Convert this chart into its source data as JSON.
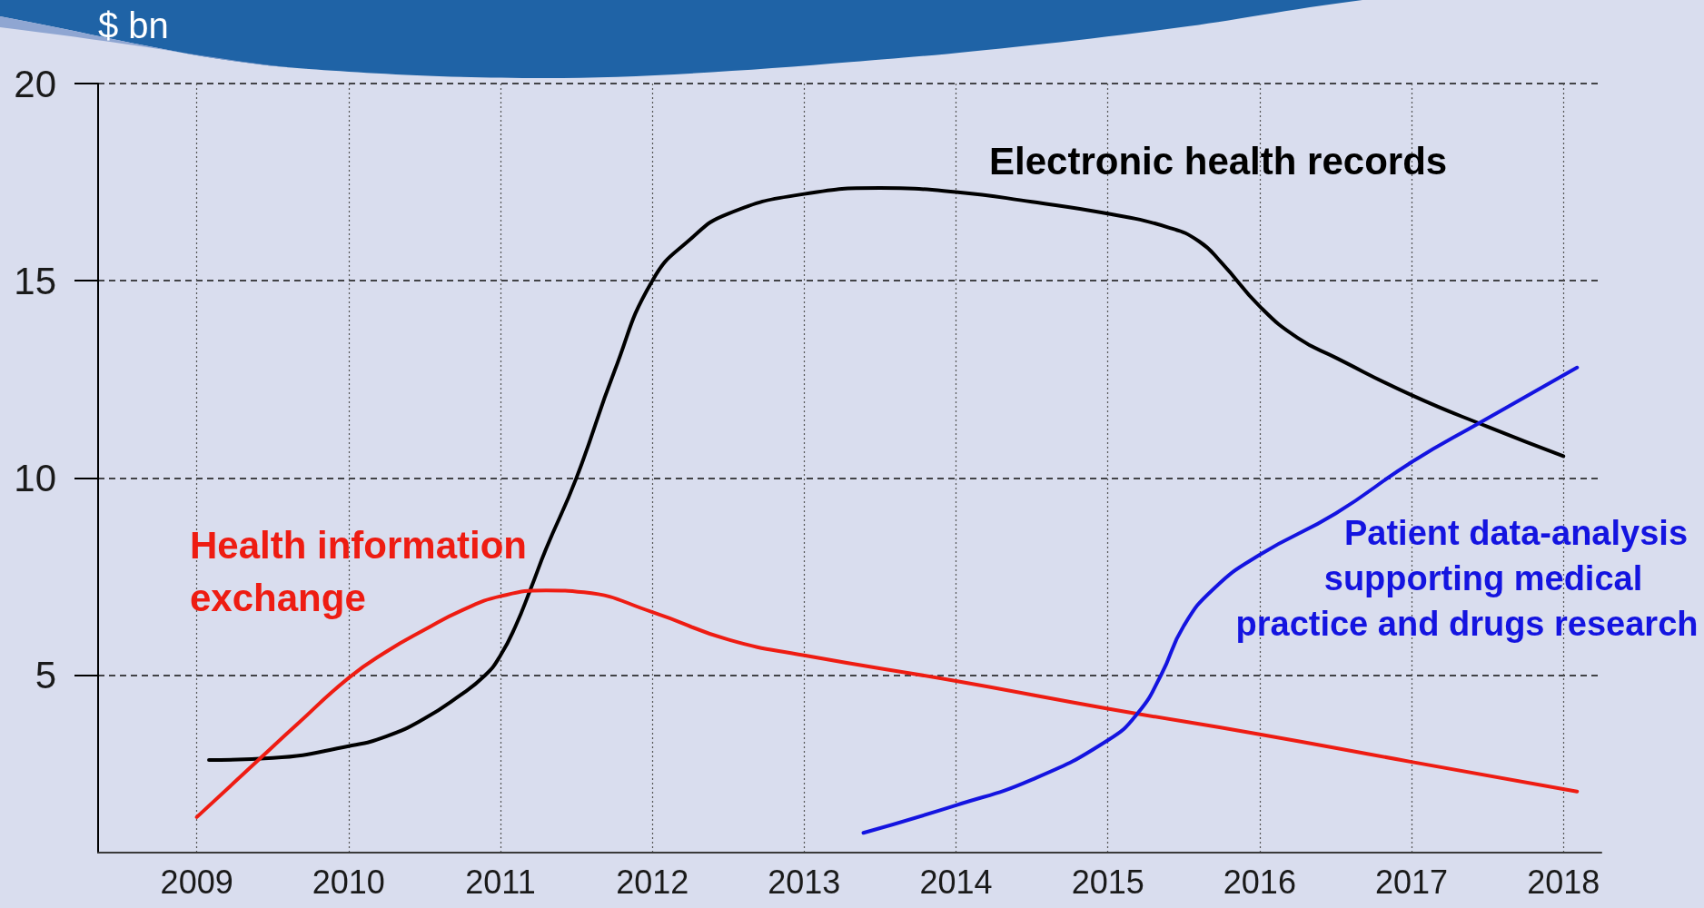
{
  "chart_data": {
    "type": "line",
    "ylabel": "$ bn",
    "xlim": [
      2008.35,
      2018.25
    ],
    "xticks": [
      2009,
      2010,
      2011,
      2012,
      2013,
      2014,
      2015,
      2016,
      2017,
      2018
    ],
    "ylim": [
      0.5,
      20
    ],
    "yticks": [
      5,
      10,
      15,
      20
    ],
    "grid": true,
    "marker": "none",
    "line_style": "solid",
    "series": [
      {
        "name": "Electronic health records",
        "color": "#000000",
        "x": [
          2009.08,
          2009.5,
          2010,
          2010.25,
          2010.5,
          2010.72,
          2010.9,
          2011,
          2011.1,
          2011.2,
          2011.3,
          2011.5,
          2011.75,
          2012,
          2012.25,
          2012.5,
          2013,
          2013.5,
          2014,
          2014.5,
          2015,
          2015.4,
          2015.6,
          2015.75,
          2016,
          2016.25,
          2016.5,
          2017,
          2017.5,
          2018
        ],
        "values": [
          2.85,
          2.9,
          3.2,
          3.45,
          3.9,
          4.45,
          5.0,
          5.5,
          6.25,
          7.2,
          8.2,
          10.0,
          12.7,
          15.0,
          16.05,
          16.7,
          17.2,
          17.35,
          17.25,
          17.0,
          16.7,
          16.35,
          16.0,
          15.45,
          14.35,
          13.55,
          13.05,
          12.1,
          11.3,
          10.55
        ]
      },
      {
        "name": "Health information exchange",
        "color": "#ee1c12",
        "x": [
          2009,
          2009.42,
          2009.66,
          2010,
          2010.25,
          2010.5,
          2010.75,
          2011,
          2011.3,
          2011.55,
          2012,
          2012.5,
          2013,
          2014,
          2015,
          2016,
          2017,
          2018.09
        ],
        "values": [
          1.4,
          2.9,
          3.75,
          4.93,
          5.6,
          6.15,
          6.65,
          7.0,
          7.15,
          7.1,
          6.6,
          5.9,
          5.5,
          4.85,
          4.15,
          3.5,
          2.8,
          2.05
        ]
      },
      {
        "name": "Patient data-analysis supporting medical practice and drugs research",
        "color": "#1414e0",
        "x": [
          2013.39,
          2014,
          2014.5,
          2015,
          2015.2,
          2015.35,
          2015.5,
          2015.7,
          2016,
          2016.5,
          2017,
          2017.45,
          2018.09
        ],
        "values": [
          1.0,
          1.7,
          2.35,
          3.35,
          4.05,
          5.0,
          6.25,
          7.2,
          8.05,
          9.1,
          10.4,
          11.4,
          12.8
        ]
      }
    ]
  }
}
